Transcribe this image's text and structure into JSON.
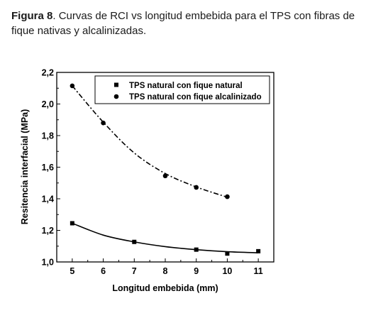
{
  "caption": {
    "label": "Figura 8",
    "text": ". Curvas de RCI vs longitud embebida para el TPS con fibras de fique  nativas y alcalinizadas."
  },
  "chart_data": {
    "type": "scatter",
    "xlabel": "Longitud embebida (mm)",
    "ylabel": "Resitencia interfacial (MPa)",
    "xlim": [
      4.5,
      11.5
    ],
    "ylim": [
      1.0,
      2.2
    ],
    "x_ticks": [
      "5",
      "6",
      "7",
      "8",
      "9",
      "10",
      "11"
    ],
    "y_ticks": [
      "1,0",
      "1,2",
      "1,4",
      "1,6",
      "1,8",
      "2,0",
      "2,2"
    ],
    "legend_position": "top-right",
    "series": [
      {
        "name": "TPS natural con fique natural",
        "marker": "square",
        "line": "solid",
        "color": "#000000",
        "x": [
          5,
          7,
          9,
          10,
          11
        ],
        "y": [
          1.245,
          1.127,
          1.078,
          1.053,
          1.068
        ],
        "fit_y": [
          1.245,
          1.17,
          1.127,
          1.097,
          1.078,
          1.065,
          1.058
        ]
      },
      {
        "name": "TPS natural con fique alcalinizado",
        "marker": "circle",
        "line": "dash-dot",
        "color": "#000000",
        "x": [
          5,
          6,
          8,
          9,
          10
        ],
        "y": [
          2.115,
          1.88,
          1.545,
          1.472,
          1.413
        ],
        "fit_y": [
          2.115,
          1.885,
          1.69,
          1.56,
          1.475,
          1.41
        ]
      }
    ]
  }
}
